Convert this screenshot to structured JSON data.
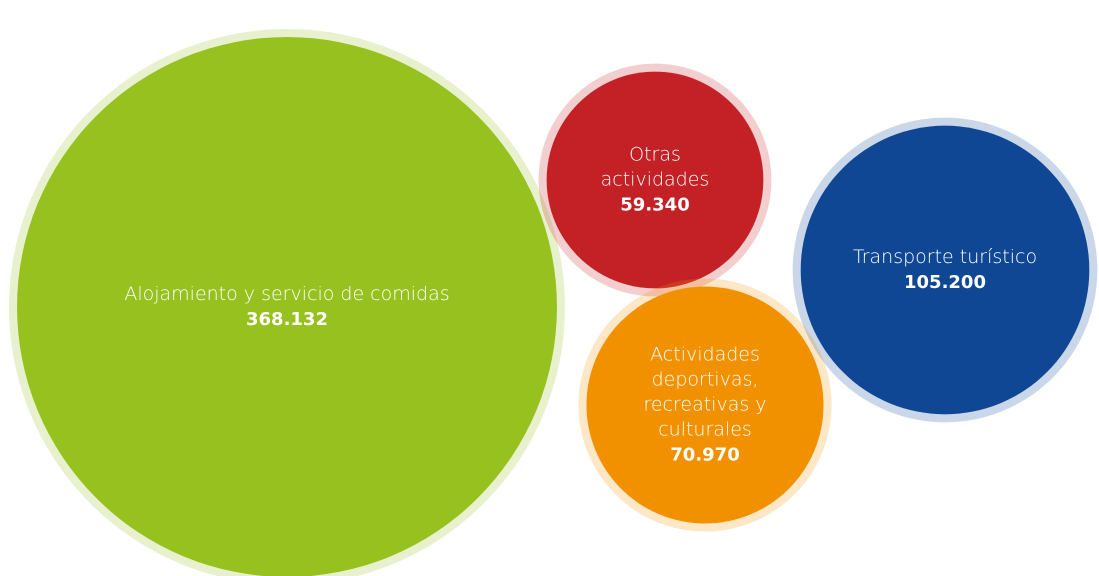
{
  "chart_data": {
    "type": "bubble",
    "categories": [
      "Alojamiento y servicio de comidas",
      "Otras actividades",
      "Transporte turístico",
      "Actividades deportivas, recreativas y culturales"
    ],
    "values": [
      368132,
      59340,
      105200,
      70970
    ],
    "value_labels": [
      "368.132",
      "59.340",
      "105.200",
      "70.970"
    ],
    "colors": [
      "#97c11f",
      "#c42126",
      "#0f4795",
      "#f29100"
    ]
  }
}
